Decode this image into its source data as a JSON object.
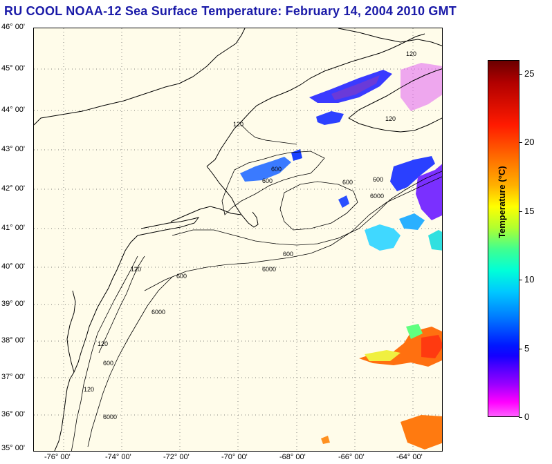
{
  "title": "RU COOL  NOAA-12  Sea Surface Temperature:  February 14, 2004 2010 GMT",
  "latitude_labels": [
    "46° 00'",
    "45° 00'",
    "44° 00'",
    "43° 00'",
    "42° 00'",
    "41° 00'",
    "40° 00'",
    "39° 00'",
    "38° 00'",
    "37° 00'",
    "36° 00'",
    "35° 00'"
  ],
  "longitude_labels": [
    "-76° 00'",
    "-74° 00'",
    "-72° 00'",
    "-70° 00'",
    "-68° 00'",
    "-66° 00'",
    "-64° 00'"
  ],
  "colorbar": {
    "label": "Temperature (°C)",
    "ticks": [
      "25",
      "20",
      "15",
      "10",
      "5",
      "0"
    ],
    "tick_values": [
      25,
      20,
      15,
      10,
      5,
      0
    ],
    "range": [
      0,
      26
    ]
  },
  "contour_labels": [
    "120",
    "120",
    "600",
    "600",
    "600",
    "6000",
    "600",
    "120",
    "600",
    "6000",
    "600",
    "120",
    "6000",
    "120",
    "600",
    "120",
    "6000"
  ],
  "colors": {
    "title": "#1a1aa8",
    "land_ocean_background": "#fffcea",
    "coastline": "#000000"
  }
}
